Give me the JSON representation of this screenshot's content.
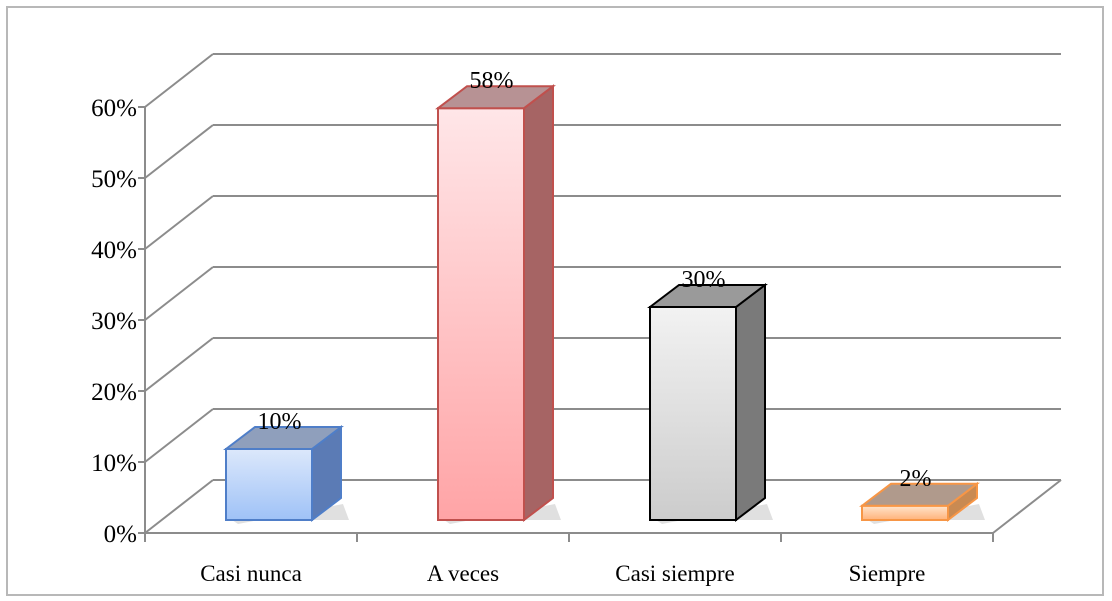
{
  "chart_data": {
    "type": "bar",
    "style": "3d-column",
    "categories": [
      "Casi nunca",
      "A veces",
      "Casi siempre",
      "Siempre"
    ],
    "values": [
      10,
      58,
      30,
      2
    ],
    "data_labels": [
      "10%",
      "58%",
      "30%",
      "2%"
    ],
    "ylim": [
      0,
      60
    ],
    "yticks": [
      0,
      10,
      20,
      30,
      40,
      50,
      60
    ],
    "ytick_labels": [
      "0%",
      "10%",
      "20%",
      "30%",
      "40%",
      "50%",
      "60%"
    ],
    "grid": true,
    "legend": "none",
    "colors": {
      "bars": [
        {
          "top": "#dce8fb",
          "bottom": "#9fc2f7",
          "side": "#5b7bb5",
          "roof": "#8f9fbc",
          "stroke": "#4f7ec8"
        },
        {
          "top": "#ffe6e8",
          "bottom": "#ffa4a6",
          "side": "#a66464",
          "roof": "#b79294",
          "stroke": "#c0504d"
        },
        {
          "top": "#f2f2f2",
          "bottom": "#cccccc",
          "side": "#7a7a7a",
          "roof": "#9a9a9a",
          "stroke": "#000000"
        },
        {
          "top": "#ffe4cc",
          "bottom": "#ffb27a",
          "side": "#c98a52",
          "roof": "#b09a8c",
          "stroke": "#f79646"
        }
      ],
      "grid": "#8c8c8c"
    }
  }
}
